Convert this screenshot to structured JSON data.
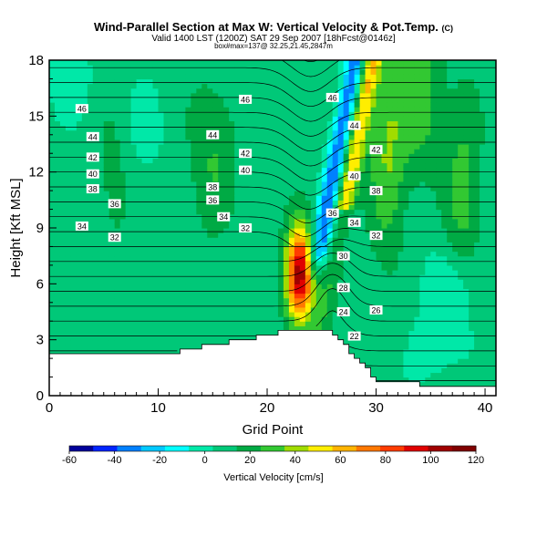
{
  "chart_data": {
    "type": "heatmap",
    "title": "Wind-Parallel Section at Max W: Vertical Velocity & Pot.Temp.",
    "title_mark": "(C)",
    "subtitle": "Valid 1400 LST (1200Z) SAT 29 Sep 2007 [18hFcst@0146z]",
    "subtitle2": "box#max=137@ 32.25,21.45,2847m",
    "xlabel": "Grid Point",
    "ylabel": "Height [Kft MSL]",
    "xlim": [
      0,
      41
    ],
    "ylim": [
      0,
      18
    ],
    "xticks": [
      0,
      10,
      20,
      30,
      40
    ],
    "yticks": [
      0,
      3,
      6,
      9,
      12,
      15,
      18
    ],
    "colorbar": {
      "label": "Vertical Velocity [cm/s]",
      "ticks": [
        -60,
        -40,
        -20,
        0,
        20,
        40,
        60,
        80,
        100,
        120
      ],
      "colors": [
        "#00009a",
        "#0024ff",
        "#0080ff",
        "#00c8ff",
        "#00ffff",
        "#00e8a8",
        "#00c878",
        "#00aa44",
        "#32c832",
        "#a0dc00",
        "#ffee00",
        "#ffb400",
        "#ff7800",
        "#ff3c00",
        "#e00000",
        "#a00000",
        "#800000"
      ]
    },
    "theta_contour_labels": [
      {
        "x": 3,
        "y": 15.4,
        "text": "46"
      },
      {
        "x": 4,
        "y": 13.9,
        "text": "44"
      },
      {
        "x": 4,
        "y": 12.8,
        "text": "42"
      },
      {
        "x": 4,
        "y": 11.9,
        "text": "40"
      },
      {
        "x": 4,
        "y": 11.1,
        "text": "38"
      },
      {
        "x": 6,
        "y": 10.3,
        "text": "36"
      },
      {
        "x": 3,
        "y": 9.1,
        "text": "34"
      },
      {
        "x": 6,
        "y": 8.5,
        "text": "32"
      },
      {
        "x": 18,
        "y": 15.9,
        "text": "46"
      },
      {
        "x": 15,
        "y": 14.0,
        "text": "44"
      },
      {
        "x": 18,
        "y": 13.0,
        "text": "42"
      },
      {
        "x": 18,
        "y": 12.1,
        "text": "40"
      },
      {
        "x": 15,
        "y": 11.2,
        "text": "38"
      },
      {
        "x": 15,
        "y": 10.5,
        "text": "36"
      },
      {
        "x": 16,
        "y": 9.6,
        "text": "34"
      },
      {
        "x": 18,
        "y": 9.0,
        "text": "32"
      },
      {
        "x": 26,
        "y": 16.0,
        "text": "46"
      },
      {
        "x": 28,
        "y": 14.5,
        "text": "44"
      },
      {
        "x": 30,
        "y": 13.2,
        "text": "42"
      },
      {
        "x": 28,
        "y": 11.8,
        "text": "40"
      },
      {
        "x": 30,
        "y": 11.0,
        "text": "38"
      },
      {
        "x": 26,
        "y": 9.8,
        "text": "36"
      },
      {
        "x": 28,
        "y": 9.3,
        "text": "34"
      },
      {
        "x": 30,
        "y": 8.6,
        "text": "32"
      },
      {
        "x": 27,
        "y": 7.5,
        "text": "30"
      },
      {
        "x": 27,
        "y": 5.8,
        "text": "28"
      },
      {
        "x": 27,
        "y": 4.5,
        "text": "24"
      },
      {
        "x": 30,
        "y": 4.6,
        "text": "26"
      },
      {
        "x": 28,
        "y": 3.2,
        "text": "22"
      }
    ]
  }
}
